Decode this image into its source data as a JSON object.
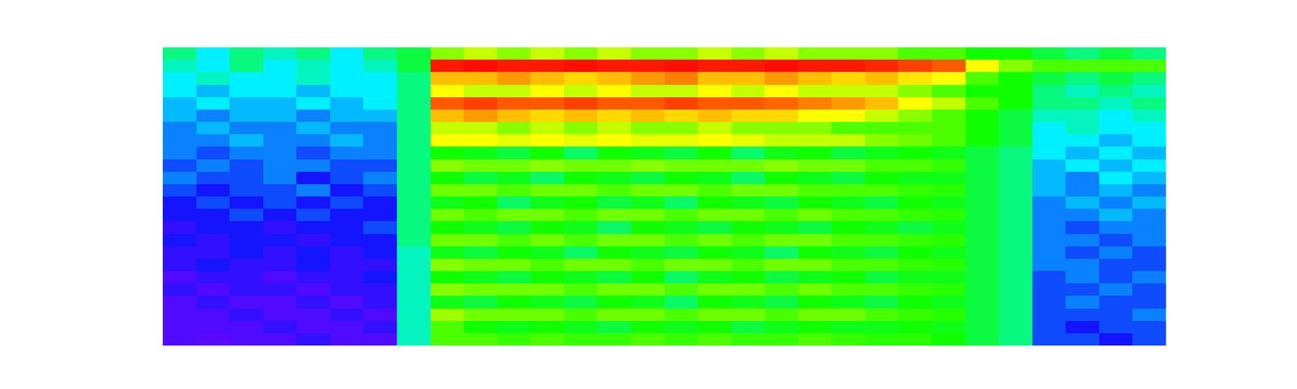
{
  "chart_data": {
    "type": "heatmap",
    "tick_labels": false,
    "grid": false,
    "zlim": [
      0,
      10
    ],
    "z": [
      [
        5,
        4,
        5,
        4.5,
        5,
        4,
        5,
        5.5,
        7,
        7.5,
        7,
        7.5,
        7,
        7.5,
        7,
        7,
        7.5,
        7,
        7.5,
        7,
        7,
        7,
        6.5,
        6.5,
        6,
        6,
        5.5,
        5,
        5.5,
        5
      ],
      [
        4.5,
        4,
        5,
        4,
        4.5,
        4,
        4.5,
        5.5,
        9.8,
        9.9,
        9.8,
        9.8,
        9.9,
        9.8,
        9.8,
        9.9,
        9.8,
        9.8,
        9.9,
        9.8,
        9.8,
        9.7,
        9.5,
        9.3,
        8,
        7,
        6.5,
        6.5,
        6.5,
        6.5
      ],
      [
        4,
        4.5,
        4,
        4,
        4.5,
        4,
        4,
        5,
        8.5,
        8.5,
        8.8,
        8.5,
        8.3,
        8.5,
        8.8,
        9,
        8.5,
        8.5,
        8.8,
        8.5,
        8.3,
        8.5,
        8.2,
        8,
        6.5,
        6,
        5.5,
        5,
        5.5,
        5
      ],
      [
        4,
        3.5,
        4,
        4,
        3.5,
        4,
        4,
        5,
        8,
        7.5,
        7.5,
        8,
        7.5,
        8,
        7.5,
        7.5,
        8,
        7.5,
        8,
        7.5,
        7.5,
        7.5,
        7,
        6.5,
        6,
        6,
        5,
        4.5,
        5,
        4.5
      ],
      [
        3.5,
        4,
        3.5,
        3.5,
        4,
        3.5,
        4,
        5,
        9.3,
        9.5,
        9.3,
        9.3,
        9.5,
        9.3,
        9.3,
        9.5,
        9.3,
        9.3,
        9.2,
        9,
        8.8,
        8.5,
        8,
        7.5,
        6.5,
        6,
        5,
        5,
        4.5,
        5
      ],
      [
        3.5,
        3,
        3.5,
        3.5,
        3,
        3.5,
        3.5,
        5,
        8.5,
        8.8,
        8.5,
        8.3,
        8.5,
        8.3,
        8.5,
        8.3,
        8.5,
        8.3,
        8.3,
        8,
        8,
        7.5,
        7,
        6.5,
        6,
        5.5,
        4.5,
        4.5,
        4,
        4.5
      ],
      [
        3,
        3.5,
        3,
        3,
        3.5,
        3,
        3,
        5,
        7.5,
        7.5,
        7,
        7.5,
        7,
        7.5,
        7,
        7,
        7.5,
        7,
        7,
        7,
        6.5,
        6.5,
        6.5,
        6.5,
        6,
        5.5,
        4,
        4.5,
        4,
        4
      ],
      [
        3,
        3,
        3.5,
        3,
        3,
        3.5,
        3,
        5,
        8,
        8,
        7.8,
        8,
        7.8,
        8,
        7.8,
        7.8,
        8,
        7.8,
        7.5,
        7.5,
        7.5,
        7,
        6.8,
        6.5,
        6,
        5.5,
        4,
        4,
        3.5,
        4
      ],
      [
        3,
        2.5,
        3,
        3,
        2.5,
        3,
        3,
        5,
        6,
        5.8,
        5.5,
        6,
        5.2,
        6,
        5.8,
        5.5,
        6,
        5.2,
        5.8,
        6,
        5.5,
        5.8,
        6,
        5.8,
        5.5,
        5,
        4,
        3.5,
        4,
        3.5
      ],
      [
        2.5,
        3,
        2.5,
        3,
        3,
        2.5,
        2.5,
        5,
        7,
        6.8,
        6.8,
        7,
        6.8,
        6.8,
        7,
        6.8,
        6.8,
        6.8,
        7,
        6.8,
        6.8,
        6.5,
        6.5,
        6.3,
        5.5,
        5,
        3.5,
        4,
        3.5,
        4
      ],
      [
        3,
        2.5,
        2.5,
        3,
        2,
        2.5,
        3,
        5,
        6,
        5.5,
        5.8,
        5.2,
        6,
        5.8,
        5.5,
        6,
        5.8,
        5.2,
        6,
        5.8,
        5.5,
        6,
        5.8,
        5.8,
        5.5,
        5,
        3.5,
        3,
        4,
        3.5
      ],
      [
        2.5,
        2,
        2.5,
        2.5,
        3,
        2,
        2.5,
        5,
        6.8,
        6.8,
        6.5,
        6.8,
        6.8,
        6.5,
        6.8,
        6.8,
        6.5,
        6.8,
        6.8,
        6.5,
        6.5,
        6.5,
        6.3,
        6.2,
        5.5,
        5,
        3.5,
        3,
        3.5,
        3
      ],
      [
        2,
        2.5,
        2,
        2.5,
        2,
        2.5,
        2,
        5,
        5.8,
        6,
        5.2,
        5.8,
        6,
        5.5,
        5.8,
        5.2,
        6,
        5.8,
        5.5,
        6,
        5.8,
        5.5,
        6,
        5.8,
        5.5,
        5,
        3,
        3.5,
        3,
        3.5
      ],
      [
        2,
        2,
        2.5,
        2,
        2.5,
        2,
        2,
        5,
        6.8,
        6.5,
        6.8,
        6.8,
        6.5,
        6.8,
        6.8,
        6.5,
        6.8,
        6.8,
        6.5,
        6.8,
        6.5,
        6.5,
        6.3,
        6.2,
        5.5,
        5,
        3,
        3,
        3.5,
        3
      ],
      [
        1.5,
        2,
        2,
        1.5,
        2,
        2,
        2.5,
        5,
        6,
        5.8,
        5.5,
        6,
        5.8,
        5.2,
        6,
        5.8,
        5.5,
        6,
        5.8,
        5.5,
        6,
        5.8,
        5.5,
        5.8,
        5.5,
        5,
        3,
        2.5,
        3,
        3
      ],
      [
        2,
        1.5,
        2,
        2,
        1.5,
        2,
        2,
        5,
        6.8,
        6.8,
        6.5,
        6.8,
        6.5,
        6.8,
        6.8,
        6.5,
        6.8,
        6.5,
        6.8,
        6.8,
        6.5,
        6.5,
        6.3,
        6.2,
        5.5,
        5,
        3,
        3,
        2.5,
        3
      ],
      [
        1.5,
        1.5,
        2,
        1.5,
        2,
        1.5,
        2,
        4.5,
        5.8,
        5.5,
        6,
        5.8,
        5.2,
        6,
        5.8,
        5.5,
        6,
        5.8,
        5.2,
        6,
        5.8,
        5.5,
        6,
        5.8,
        5.5,
        5,
        3,
        2.5,
        3,
        2.5
      ],
      [
        1.5,
        2,
        1.5,
        1.5,
        2,
        1.5,
        1.5,
        4.5,
        7,
        6.8,
        6.8,
        6.5,
        6.8,
        6.8,
        6.5,
        6.8,
        6.8,
        6.5,
        6.8,
        6.8,
        6.5,
        6.5,
        6.3,
        6.2,
        5.5,
        5,
        3,
        3,
        2.5,
        2.5
      ],
      [
        1,
        1.5,
        1.5,
        1,
        1.5,
        1.5,
        2,
        4.5,
        6,
        5.8,
        5.5,
        6,
        5.8,
        5.5,
        6,
        5.2,
        5.8,
        6,
        5.5,
        5.8,
        6,
        5.5,
        5.8,
        5.8,
        5.5,
        5,
        2.5,
        3,
        2.5,
        3
      ],
      [
        1.5,
        1,
        1.5,
        1.5,
        1,
        1.5,
        1.5,
        4.5,
        7,
        6.8,
        6.8,
        6.8,
        6.5,
        6.8,
        6.8,
        6.5,
        6.8,
        6.8,
        6.5,
        6.8,
        6.5,
        6.5,
        6.3,
        6.2,
        5.5,
        5,
        2.5,
        2.5,
        3,
        2.5
      ],
      [
        1,
        1.5,
        1,
        1,
        1.5,
        1,
        1.5,
        4.5,
        5.8,
        5.5,
        6,
        5.8,
        5.5,
        6,
        5.8,
        5.2,
        6,
        5.8,
        5.5,
        6,
        5.8,
        5.5,
        6,
        5.8,
        5.5,
        5,
        2.5,
        3,
        2.5,
        2.5
      ],
      [
        1,
        1,
        1.5,
        1,
        1,
        1.5,
        1,
        4.5,
        7.2,
        6.8,
        6.8,
        6.8,
        6.5,
        6.8,
        6.8,
        6.5,
        6.8,
        6.8,
        6.5,
        6.8,
        6.8,
        6.5,
        6.3,
        6.2,
        5.5,
        5,
        2.5,
        2.5,
        2.5,
        3
      ],
      [
        1,
        1,
        1,
        1.5,
        1,
        1,
        1.5,
        4.5,
        6.5,
        6,
        5.8,
        6,
        5.8,
        5.5,
        6,
        5.8,
        6,
        5.5,
        5.8,
        6,
        5.8,
        5.8,
        6,
        5.8,
        5.5,
        5,
        2.5,
        2,
        2.5,
        2.5
      ],
      [
        1,
        0.8,
        1,
        1,
        1.5,
        1,
        1,
        4.5,
        6.5,
        6.5,
        6.3,
        6.5,
        6.3,
        6.3,
        6.5,
        6.3,
        6.5,
        6.3,
        6.3,
        6.5,
        6.3,
        6.2,
        6.2,
        6,
        5.5,
        5,
        2.5,
        2.5,
        2,
        2.5
      ]
    ]
  }
}
